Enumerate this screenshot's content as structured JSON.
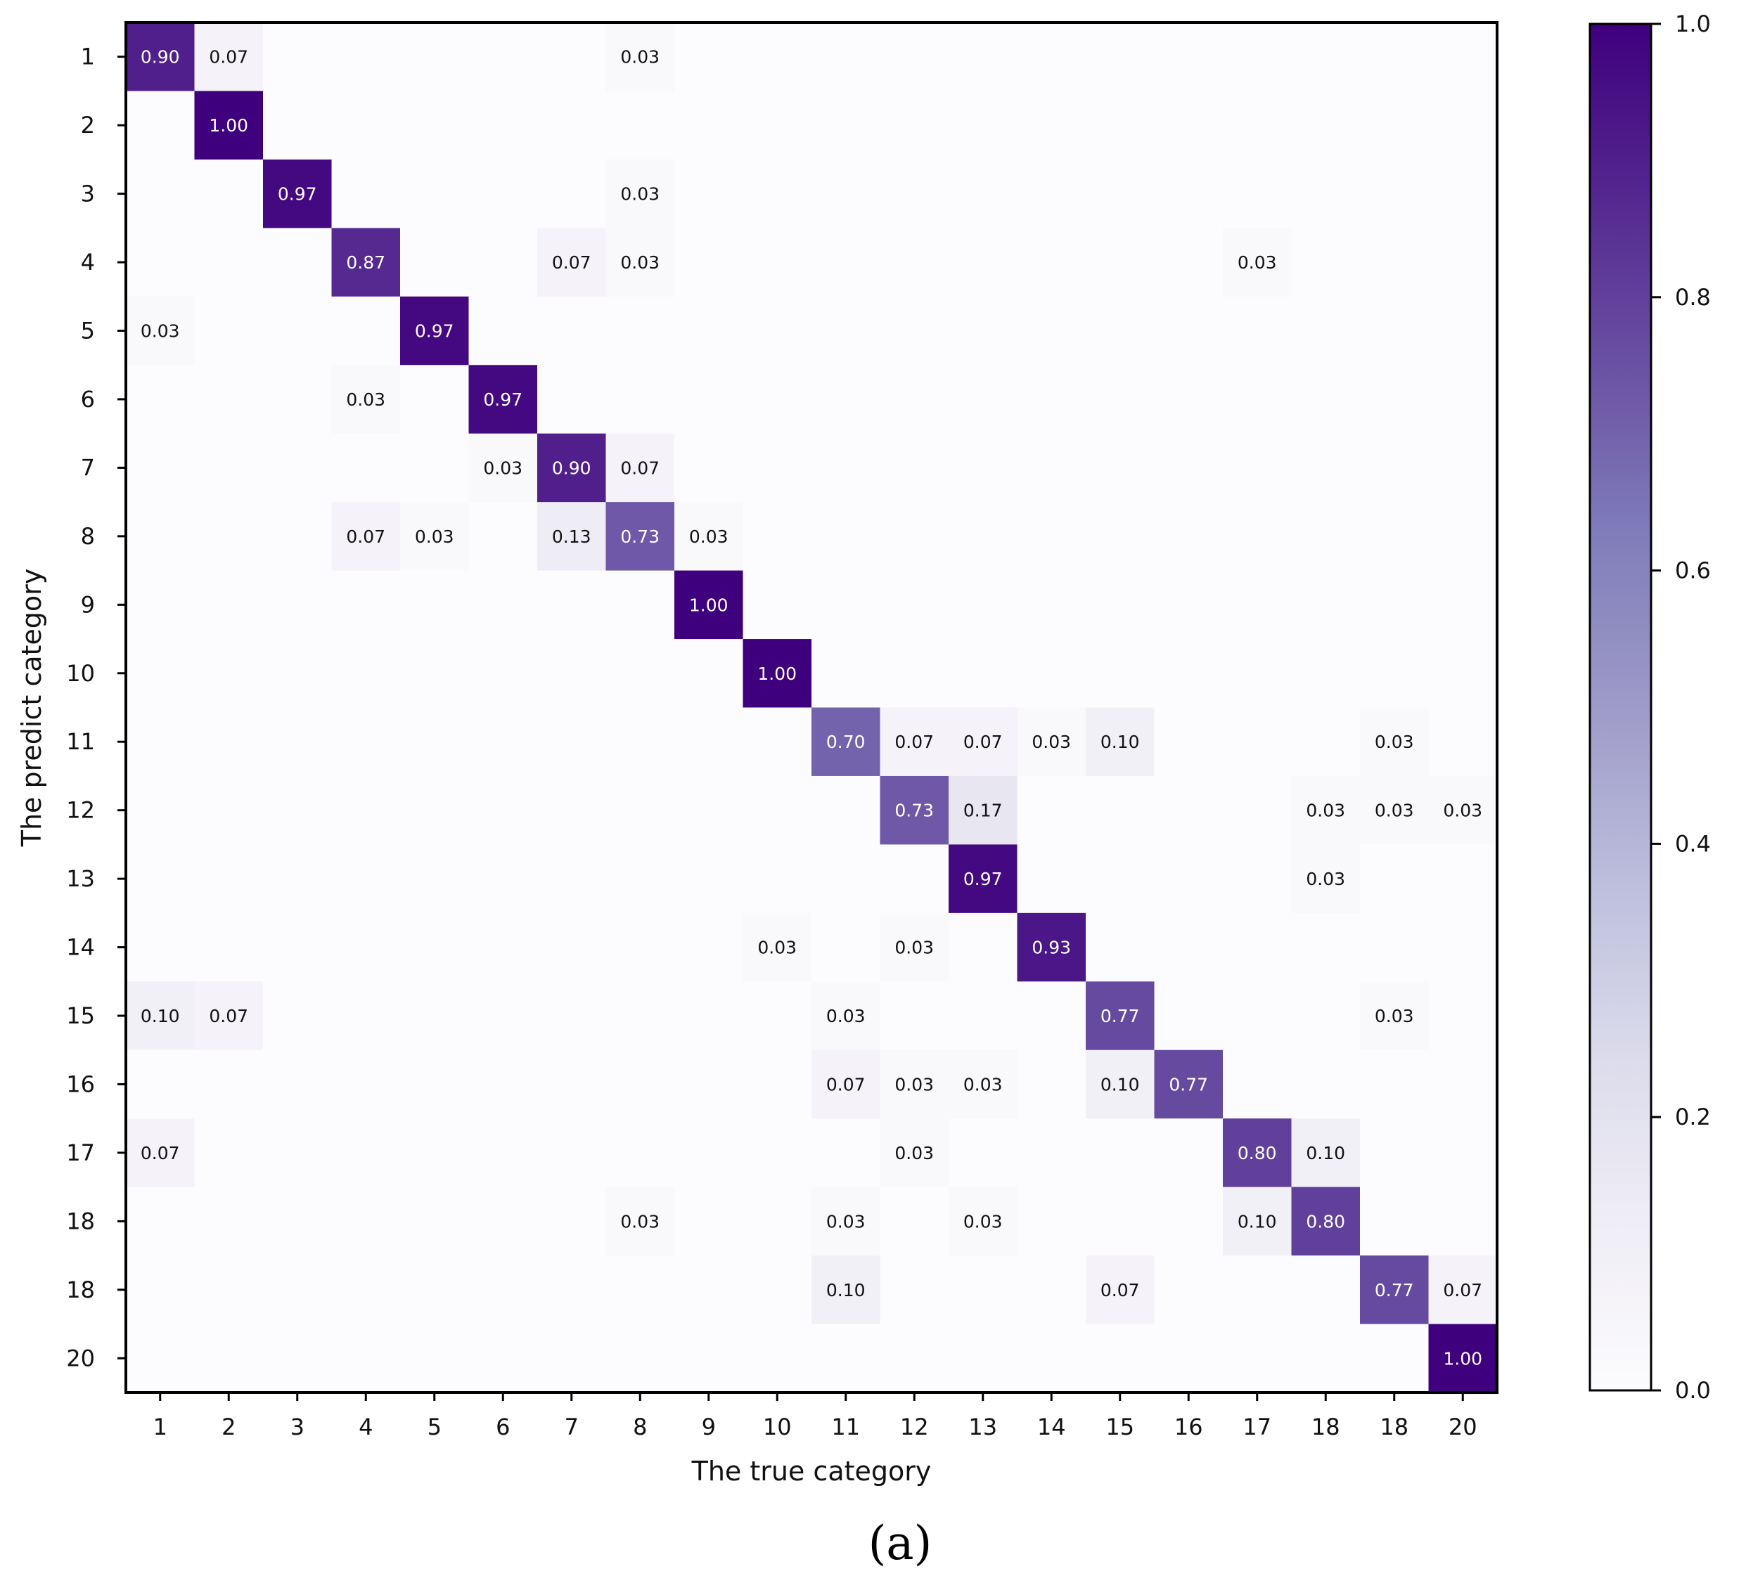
{
  "chart_data": {
    "type": "heatmap",
    "xlabel": "The true category",
    "ylabel": "The predict category",
    "panel_label": "(a)",
    "x_categories": [
      "1",
      "2",
      "3",
      "4",
      "5",
      "6",
      "7",
      "8",
      "9",
      "10",
      "11",
      "12",
      "13",
      "14",
      "15",
      "16",
      "17",
      "18",
      "18",
      "20"
    ],
    "y_categories": [
      "1",
      "2",
      "3",
      "4",
      "5",
      "6",
      "7",
      "8",
      "9",
      "10",
      "11",
      "12",
      "13",
      "14",
      "15",
      "16",
      "17",
      "18",
      "18",
      "20"
    ],
    "value_format": "0.00",
    "colorbar": {
      "range": [
        0.0,
        1.0
      ],
      "ticks": [
        "0.0",
        "0.2",
        "0.4",
        "0.6",
        "0.8",
        "1.0"
      ],
      "colors": [
        "#fcfbfd",
        "#efedf5",
        "#dadaeb",
        "#bcbddc",
        "#9e9ac8",
        "#807dba",
        "#6a51a3",
        "#54278f",
        "#3f007d"
      ]
    },
    "cells": [
      [
        0.9,
        0.07,
        0,
        0,
        0,
        0,
        0,
        0.03,
        0,
        0,
        0,
        0,
        0,
        0,
        0,
        0,
        0,
        0,
        0,
        0
      ],
      [
        0,
        1.0,
        0,
        0,
        0,
        0,
        0,
        0,
        0,
        0,
        0,
        0,
        0,
        0,
        0,
        0,
        0,
        0,
        0,
        0
      ],
      [
        0,
        0,
        0.97,
        0,
        0,
        0,
        0,
        0.03,
        0,
        0,
        0,
        0,
        0,
        0,
        0,
        0,
        0,
        0,
        0,
        0
      ],
      [
        0,
        0,
        0,
        0.87,
        0,
        0,
        0.07,
        0.03,
        0,
        0,
        0,
        0,
        0,
        0,
        0,
        0,
        0.03,
        0,
        0,
        0
      ],
      [
        0.03,
        0,
        0,
        0,
        0.97,
        0,
        0,
        0,
        0,
        0,
        0,
        0,
        0,
        0,
        0,
        0,
        0,
        0,
        0,
        0
      ],
      [
        0,
        0,
        0,
        0.03,
        0,
        0.97,
        0,
        0,
        0,
        0,
        0,
        0,
        0,
        0,
        0,
        0,
        0,
        0,
        0,
        0
      ],
      [
        0,
        0,
        0,
        0,
        0,
        0.03,
        0.9,
        0.07,
        0,
        0,
        0,
        0,
        0,
        0,
        0,
        0,
        0,
        0,
        0,
        0
      ],
      [
        0,
        0,
        0,
        0.07,
        0.03,
        0,
        0.13,
        0.73,
        0.03,
        0,
        0,
        0,
        0,
        0,
        0,
        0,
        0,
        0,
        0,
        0
      ],
      [
        0,
        0,
        0,
        0,
        0,
        0,
        0,
        0,
        1.0,
        0,
        0,
        0,
        0,
        0,
        0,
        0,
        0,
        0,
        0,
        0
      ],
      [
        0,
        0,
        0,
        0,
        0,
        0,
        0,
        0,
        0,
        1.0,
        0,
        0,
        0,
        0,
        0,
        0,
        0,
        0,
        0,
        0
      ],
      [
        0,
        0,
        0,
        0,
        0,
        0,
        0,
        0,
        0,
        0,
        0.7,
        0.07,
        0.07,
        0.03,
        0.1,
        0,
        0,
        0,
        0.03,
        0
      ],
      [
        0,
        0,
        0,
        0,
        0,
        0,
        0,
        0,
        0,
        0,
        0,
        0.73,
        0.17,
        0,
        0,
        0,
        0,
        0.03,
        0.03,
        0.03
      ],
      [
        0,
        0,
        0,
        0,
        0,
        0,
        0,
        0,
        0,
        0,
        0,
        0,
        0.97,
        0,
        0,
        0,
        0,
        0.03,
        0,
        0
      ],
      [
        0,
        0,
        0,
        0,
        0,
        0,
        0,
        0,
        0,
        0.03,
        0,
        0.03,
        0,
        0.93,
        0,
        0,
        0,
        0,
        0,
        0
      ],
      [
        0.1,
        0.07,
        0,
        0,
        0,
        0,
        0,
        0,
        0,
        0,
        0.03,
        0,
        0,
        0,
        0.77,
        0,
        0,
        0,
        0.03,
        0
      ],
      [
        0,
        0,
        0,
        0,
        0,
        0,
        0,
        0,
        0,
        0,
        0.07,
        0.03,
        0.03,
        0,
        0.1,
        0.77,
        0,
        0,
        0,
        0
      ],
      [
        0.07,
        0,
        0,
        0,
        0,
        0,
        0,
        0,
        0,
        0,
        0,
        0.03,
        0,
        0,
        0,
        0,
        0.8,
        0.1,
        0,
        0
      ],
      [
        0,
        0,
        0,
        0,
        0,
        0,
        0,
        0.03,
        0,
        0,
        0.03,
        0,
        0.03,
        0,
        0,
        0,
        0.1,
        0.8,
        0,
        0
      ],
      [
        0,
        0,
        0,
        0,
        0,
        0,
        0,
        0,
        0,
        0,
        0.1,
        0,
        0,
        0,
        0.07,
        0,
        0,
        0,
        0.77,
        0.07
      ],
      [
        0,
        0,
        0,
        0,
        0,
        0,
        0,
        0,
        0,
        0,
        0,
        0,
        0,
        0,
        0,
        0,
        0,
        0,
        0,
        1.0
      ]
    ]
  }
}
